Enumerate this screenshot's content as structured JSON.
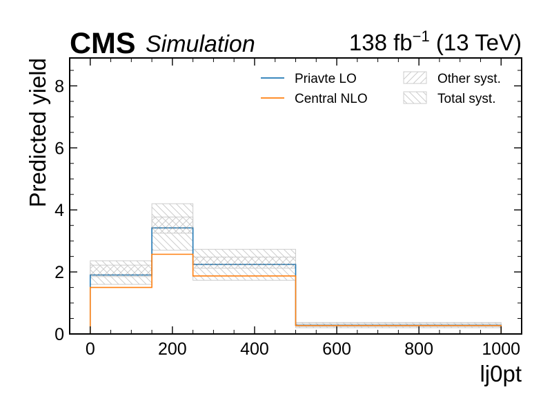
{
  "header": {
    "experiment": "CMS",
    "tag": "Simulation",
    "lumi": "138 fb",
    "lumi_sup": "−1",
    "energy": " (13 TeV)"
  },
  "chart_data": {
    "type": "histogram",
    "xlabel": "lj0pt",
    "ylabel": "Predicted yield",
    "xlim": [
      -50,
      1050
    ],
    "ylim": [
      0,
      8.9
    ],
    "bin_edges": [
      0,
      150,
      250,
      500,
      1000
    ],
    "x_ticks": [
      0,
      200,
      400,
      600,
      800,
      1000
    ],
    "y_ticks": [
      0,
      2,
      4,
      6,
      8
    ],
    "series": [
      {
        "name": "Priavte LO",
        "color": "#1f77b4",
        "values": [
          1.9,
          3.42,
          2.24,
          0.28
        ]
      },
      {
        "name": "Central NLO",
        "color": "#ff7f0e",
        "values": [
          1.5,
          2.57,
          1.87,
          0.27
        ]
      }
    ],
    "bands": [
      {
        "name": "Other syst.",
        "hatch": "forward",
        "color": "#cccccc",
        "low": [
          1.85,
          3.25,
          2.12,
          0.24
        ],
        "high": [
          2.22,
          3.77,
          2.48,
          0.33
        ]
      },
      {
        "name": "Total syst.",
        "hatch": "backward",
        "color": "#cccccc",
        "low": [
          1.6,
          2.7,
          1.73,
          0.2
        ],
        "high": [
          2.36,
          4.2,
          2.73,
          0.37
        ]
      }
    ],
    "legend_position": "top-right",
    "grid": false
  }
}
